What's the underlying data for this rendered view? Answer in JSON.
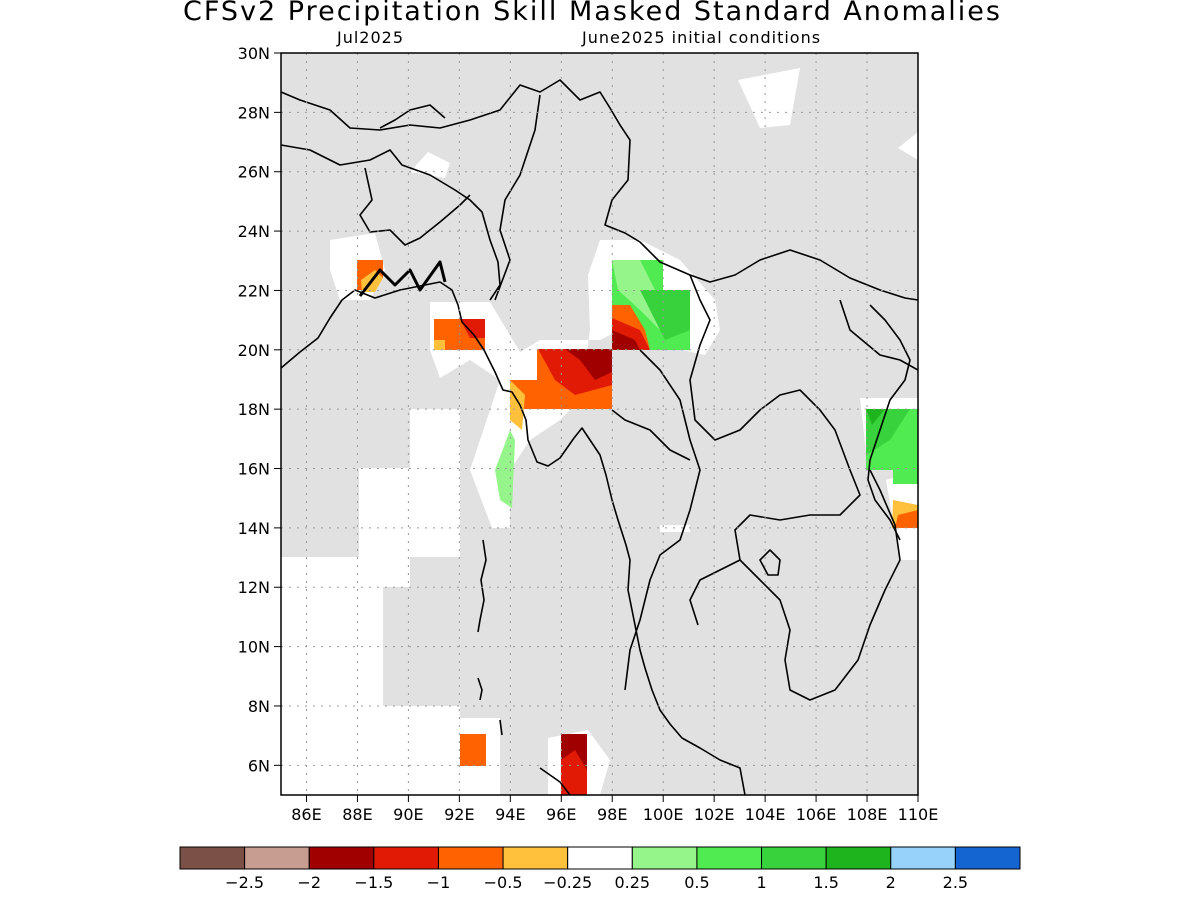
{
  "header": {
    "title": "CFSv2 Precipitation Skill Masked Standard Anomalies",
    "valid_month": "Jul2025",
    "initial_conditions": "June2025 initial conditions"
  },
  "map": {
    "lon_range": [
      85,
      110
    ],
    "lat_range": [
      5,
      30
    ],
    "x_ticks": [
      "86E",
      "88E",
      "90E",
      "92E",
      "94E",
      "96E",
      "98E",
      "100E",
      "102E",
      "104E",
      "106E",
      "108E",
      "110E"
    ],
    "y_ticks": [
      "30N",
      "28N",
      "26N",
      "24N",
      "22N",
      "20N",
      "18N",
      "16N",
      "14N",
      "12N",
      "10N",
      "8N",
      "6N"
    ],
    "background_color": "#e1e1e1",
    "mask_color": "#ffffff",
    "coastline_color": "#000000"
  },
  "colorbar": {
    "colors": [
      "#7b5046",
      "#c79d92",
      "#a10000",
      "#e11a06",
      "#ff6200",
      "#ffc03c",
      "#ffffff",
      "#96f58a",
      "#50eb50",
      "#37d23c",
      "#1eb41e",
      "#96d2fa",
      "#1464d2"
    ],
    "labels": [
      "−2.5",
      "−2",
      "−1.5",
      "−1",
      "−0.5",
      "−0.25",
      "0.25",
      "0.5",
      "1",
      "1.5",
      "2",
      "2.5"
    ]
  }
}
